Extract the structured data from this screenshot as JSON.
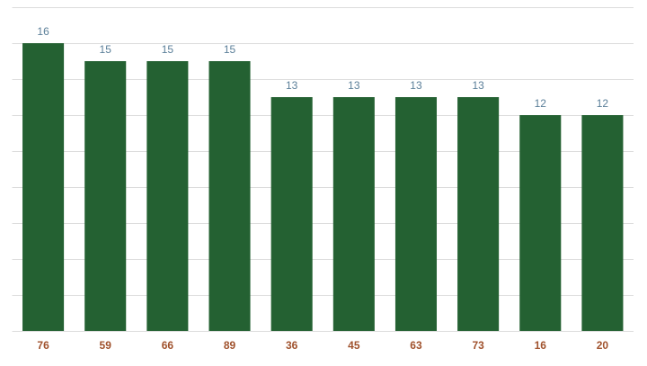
{
  "chart_data": {
    "type": "bar",
    "categories": [
      "76",
      "59",
      "66",
      "89",
      "36",
      "45",
      "63",
      "73",
      "16",
      "20"
    ],
    "values": [
      16,
      15,
      15,
      15,
      13,
      13,
      13,
      13,
      12,
      12
    ],
    "color": "#246132",
    "ylim": [
      0,
      18
    ],
    "yticks": [
      0,
      2,
      4,
      6,
      8,
      10,
      12,
      14,
      16,
      18
    ],
    "grid": true
  }
}
